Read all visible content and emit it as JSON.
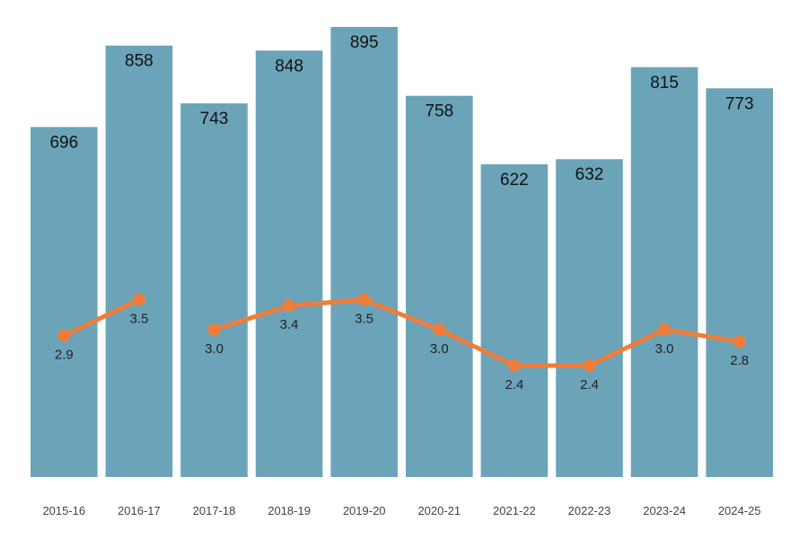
{
  "chart_data": {
    "type": "bar",
    "categories": [
      "2015-16",
      "2016-17",
      "2017-18",
      "2018-19",
      "2019-20",
      "2020-21",
      "2021-22",
      "2022-23",
      "2023-24",
      "2024-25"
    ],
    "series": [
      {
        "type": "bar",
        "values": [
          696,
          858,
          743,
          848,
          895,
          758,
          622,
          632,
          815,
          773
        ],
        "labels": [
          "696",
          "858",
          "743",
          "848",
          "895",
          "758",
          "622",
          "632",
          "815",
          "773"
        ],
        "color": "#6ba4b8"
      },
      {
        "type": "line",
        "values": [
          2.9,
          3.5,
          3.0,
          3.4,
          3.5,
          3.0,
          2.4,
          2.4,
          3.0,
          2.8
        ],
        "labels": [
          "2.9",
          "3.5",
          "3.0",
          "3.4",
          "3.5",
          "3.0",
          "2.4",
          "2.4",
          "3.0",
          "2.8"
        ],
        "color": "#f07d3a",
        "segments": [
          [
            0,
            1
          ],
          [
            2,
            9
          ]
        ]
      }
    ],
    "bar_ylim": [
      0,
      895
    ],
    "line_ylim": [
      0,
      8
    ],
    "grid": false,
    "legend": "none",
    "title": "",
    "xlabel": "",
    "ylabel": ""
  }
}
